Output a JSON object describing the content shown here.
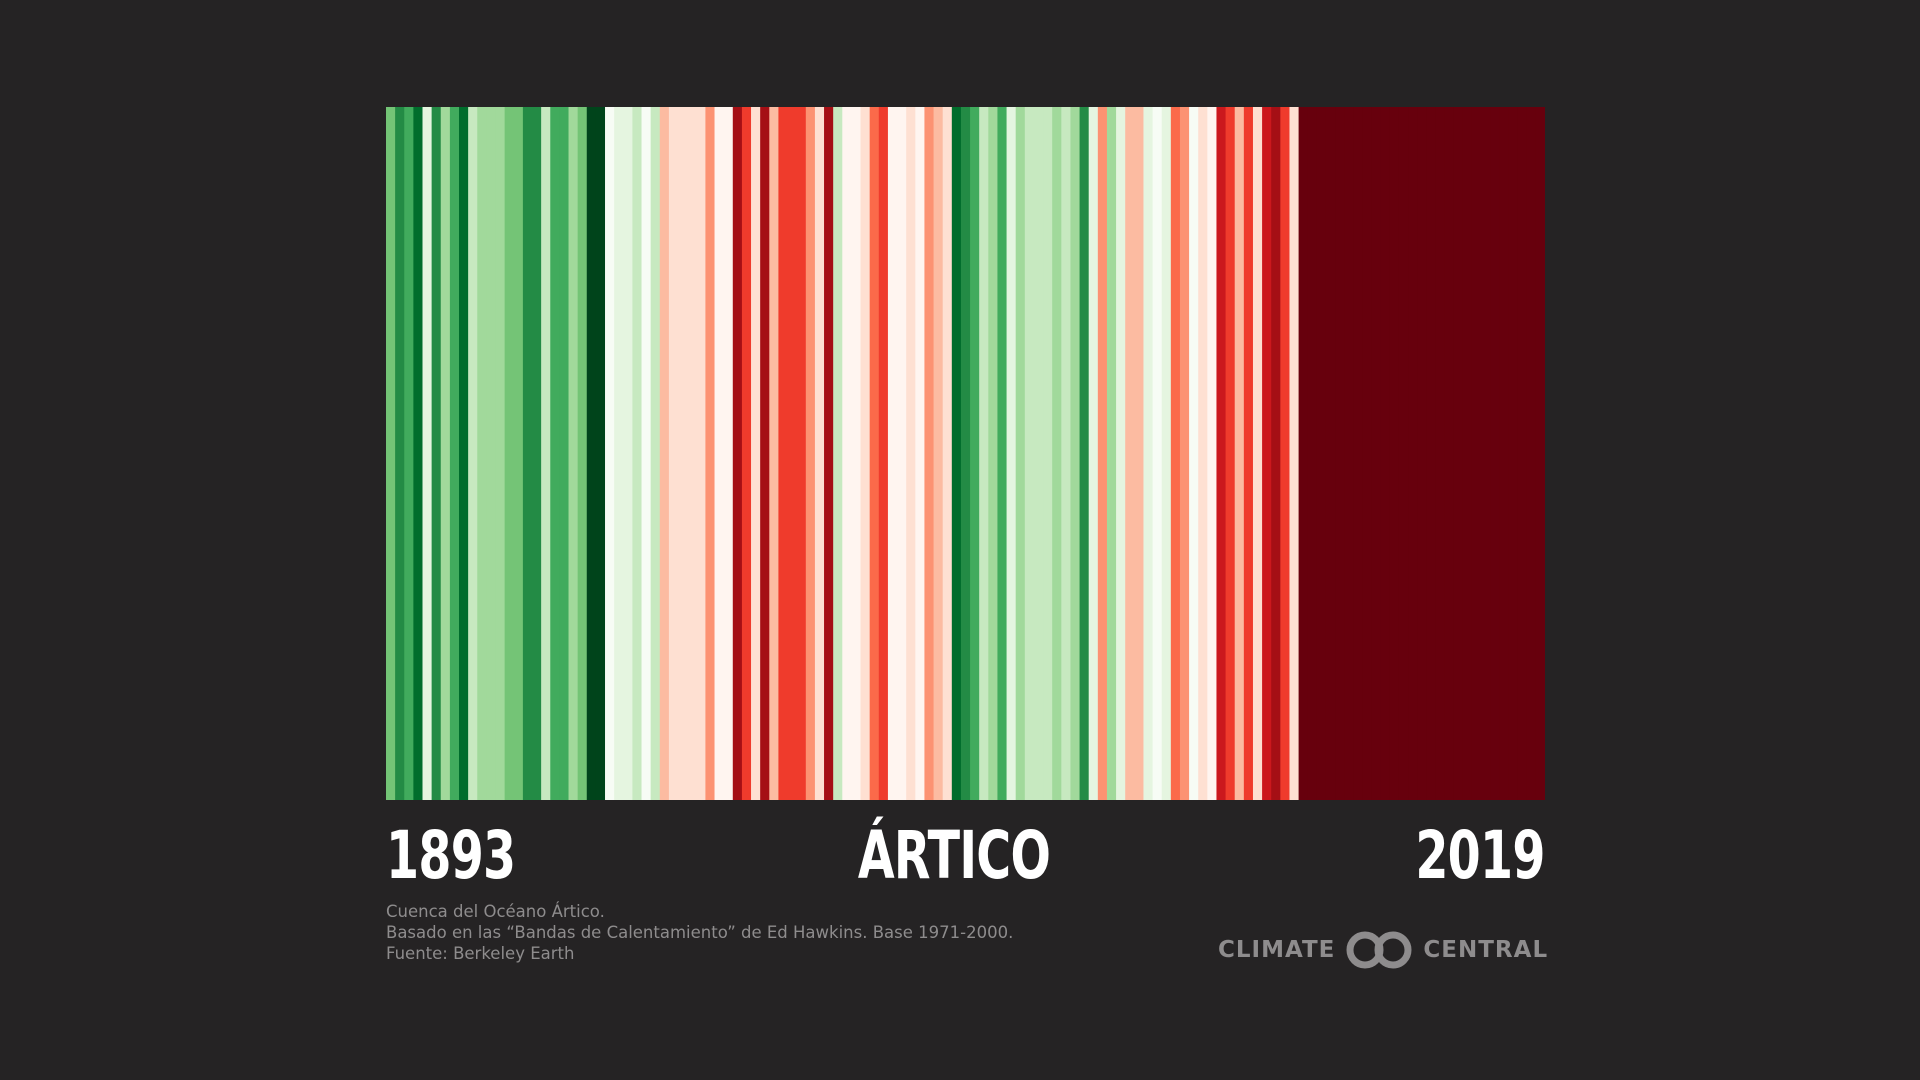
{
  "chart_data": {
    "type": "heatmap",
    "title": "ÁRTICO",
    "x_start_label": "1893",
    "x_end_label": "2019",
    "palette": {
      "g9": "#00441b",
      "g8": "#006d2c",
      "g7": "#238b45",
      "g6": "#41ab5d",
      "g5": "#74c476",
      "g4": "#a1d99b",
      "g3": "#c7e9c0",
      "g2": "#e5f5e0",
      "g1": "#f7fcf5",
      "r1": "#fff5f0",
      "r2": "#fee0d2",
      "r3": "#fcbba1",
      "r4": "#fc9272",
      "r5": "#fb6a4a",
      "r6": "#ef3b2c",
      "r7": "#cb181d",
      "r8": "#a50f15",
      "r9": "#67000d"
    },
    "stripes": [
      {
        "year": 1893,
        "color": "g5"
      },
      {
        "year": 1894,
        "color": "g7"
      },
      {
        "year": 1895,
        "color": "g6"
      },
      {
        "year": 1896,
        "color": "g8"
      },
      {
        "year": 1897,
        "color": "g2"
      },
      {
        "year": 1898,
        "color": "g7"
      },
      {
        "year": 1899,
        "color": "g4"
      },
      {
        "year": 1900,
        "color": "g6"
      },
      {
        "year": 1901,
        "color": "g8"
      },
      {
        "year": 1902,
        "color": "g3"
      },
      {
        "year": 1903,
        "color": "g4"
      },
      {
        "year": 1904,
        "color": "g4"
      },
      {
        "year": 1905,
        "color": "g4"
      },
      {
        "year": 1906,
        "color": "g5"
      },
      {
        "year": 1907,
        "color": "g5"
      },
      {
        "year": 1908,
        "color": "g7"
      },
      {
        "year": 1909,
        "color": "g7"
      },
      {
        "year": 1910,
        "color": "g3"
      },
      {
        "year": 1911,
        "color": "g6"
      },
      {
        "year": 1912,
        "color": "g6"
      },
      {
        "year": 1913,
        "color": "g4"
      },
      {
        "year": 1914,
        "color": "g5"
      },
      {
        "year": 1915,
        "color": "g9"
      },
      {
        "year": 1916,
        "color": "g9"
      },
      {
        "year": 1917,
        "color": "g1"
      },
      {
        "year": 1918,
        "color": "g2"
      },
      {
        "year": 1919,
        "color": "g2"
      },
      {
        "year": 1920,
        "color": "g3"
      },
      {
        "year": 1921,
        "color": "g1"
      },
      {
        "year": 1922,
        "color": "g3"
      },
      {
        "year": 1923,
        "color": "r3"
      },
      {
        "year": 1924,
        "color": "r2"
      },
      {
        "year": 1925,
        "color": "r2"
      },
      {
        "year": 1926,
        "color": "r2"
      },
      {
        "year": 1927,
        "color": "r2"
      },
      {
        "year": 1928,
        "color": "r4"
      },
      {
        "year": 1929,
        "color": "r1"
      },
      {
        "year": 1930,
        "color": "r1"
      },
      {
        "year": 1931,
        "color": "r8"
      },
      {
        "year": 1932,
        "color": "r6"
      },
      {
        "year": 1933,
        "color": "r2"
      },
      {
        "year": 1934,
        "color": "r8"
      },
      {
        "year": 1935,
        "color": "r3"
      },
      {
        "year": 1936,
        "color": "r6"
      },
      {
        "year": 1937,
        "color": "r6"
      },
      {
        "year": 1938,
        "color": "r6"
      },
      {
        "year": 1939,
        "color": "r4"
      },
      {
        "year": 1940,
        "color": "r2"
      },
      {
        "year": 1941,
        "color": "r8"
      },
      {
        "year": 1942,
        "color": "g3"
      },
      {
        "year": 1943,
        "color": "r1"
      },
      {
        "year": 1944,
        "color": "r1"
      },
      {
        "year": 1945,
        "color": "r2"
      },
      {
        "year": 1946,
        "color": "r5"
      },
      {
        "year": 1947,
        "color": "r6"
      },
      {
        "year": 1948,
        "color": "r1"
      },
      {
        "year": 1949,
        "color": "r1"
      },
      {
        "year": 1950,
        "color": "r2"
      },
      {
        "year": 1951,
        "color": "r1"
      },
      {
        "year": 1952,
        "color": "r4"
      },
      {
        "year": 1953,
        "color": "r3"
      },
      {
        "year": 1954,
        "color": "r2"
      },
      {
        "year": 1955,
        "color": "g8"
      },
      {
        "year": 1956,
        "color": "g7"
      },
      {
        "year": 1957,
        "color": "g6"
      },
      {
        "year": 1958,
        "color": "g3"
      },
      {
        "year": 1959,
        "color": "g4"
      },
      {
        "year": 1960,
        "color": "g6"
      },
      {
        "year": 1961,
        "color": "g2"
      },
      {
        "year": 1962,
        "color": "g4"
      },
      {
        "year": 1963,
        "color": "g3"
      },
      {
        "year": 1964,
        "color": "g3"
      },
      {
        "year": 1965,
        "color": "g3"
      },
      {
        "year": 1966,
        "color": "g4"
      },
      {
        "year": 1967,
        "color": "g3"
      },
      {
        "year": 1968,
        "color": "g4"
      },
      {
        "year": 1969,
        "color": "g7"
      },
      {
        "year": 1970,
        "color": "g2"
      },
      {
        "year": 1971,
        "color": "r4"
      },
      {
        "year": 1972,
        "color": "g4"
      },
      {
        "year": 1973,
        "color": "g2"
      },
      {
        "year": 1974,
        "color": "r3"
      },
      {
        "year": 1975,
        "color": "r3"
      },
      {
        "year": 1976,
        "color": "g2"
      },
      {
        "year": 1977,
        "color": "g1"
      },
      {
        "year": 1978,
        "color": "g2"
      },
      {
        "year": 1979,
        "color": "r5"
      },
      {
        "year": 1980,
        "color": "r4"
      },
      {
        "year": 1981,
        "color": "g1"
      },
      {
        "year": 1982,
        "color": "r2"
      },
      {
        "year": 1983,
        "color": "r1"
      },
      {
        "year": 1984,
        "color": "r7"
      },
      {
        "year": 1985,
        "color": "r6"
      },
      {
        "year": 1986,
        "color": "r3"
      },
      {
        "year": 1987,
        "color": "r6"
      },
      {
        "year": 1988,
        "color": "r2"
      },
      {
        "year": 1989,
        "color": "r7"
      },
      {
        "year": 1990,
        "color": "r8"
      },
      {
        "year": 1991,
        "color": "r6"
      },
      {
        "year": 1992,
        "color": "r2"
      },
      {
        "year": 1993,
        "color": "r9"
      },
      {
        "year": 1994,
        "color": "r9"
      },
      {
        "year": 1995,
        "color": "r9"
      },
      {
        "year": 1996,
        "color": "r9"
      },
      {
        "year": 1997,
        "color": "r9"
      },
      {
        "year": 1998,
        "color": "r9"
      },
      {
        "year": 1999,
        "color": "r9"
      },
      {
        "year": 2000,
        "color": "r9"
      },
      {
        "year": 2001,
        "color": "r9"
      },
      {
        "year": 2002,
        "color": "r9"
      },
      {
        "year": 2003,
        "color": "r9"
      },
      {
        "year": 2004,
        "color": "r9"
      },
      {
        "year": 2005,
        "color": "r9"
      },
      {
        "year": 2006,
        "color": "r9"
      },
      {
        "year": 2007,
        "color": "r9"
      },
      {
        "year": 2008,
        "color": "r9"
      },
      {
        "year": 2009,
        "color": "r9"
      },
      {
        "year": 2010,
        "color": "r9"
      },
      {
        "year": 2011,
        "color": "r9"
      },
      {
        "year": 2012,
        "color": "r9"
      },
      {
        "year": 2013,
        "color": "r9"
      },
      {
        "year": 2014,
        "color": "r9"
      },
      {
        "year": 2015,
        "color": "r9"
      },
      {
        "year": 2016,
        "color": "r9"
      },
      {
        "year": 2017,
        "color": "r9"
      },
      {
        "year": 2018,
        "color": "r9"
      },
      {
        "year": 2019,
        "color": "r9"
      }
    ]
  },
  "caption": {
    "line1": "Cuenca del Océano Ártico.",
    "line2": "Basado en las “Bandas de Calentamiento” de Ed Hawkins. Base 1971-2000.",
    "line3": "Fuente: Berkeley Earth"
  },
  "logo": {
    "left_word": "CLIMATE",
    "right_word": "CENTRAL",
    "color": "#8e8c8d"
  },
  "background_color": "#252324"
}
